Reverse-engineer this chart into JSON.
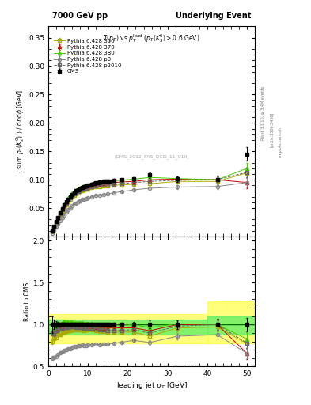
{
  "title_left": "7000 GeV pp",
  "title_right": "Underlying Event",
  "annotation": "(CMS_2012_PAS_QCD_11_010)",
  "rivet_label": "Rivet 3.1.10, ≥ 3.4M events",
  "arxiv_label": "[arXiv:1306.3436]",
  "mcplots_label": "mcplots.cern.ch",
  "plot_title": "$\\Sigma(p_T)$ vs $p_T^{\\rm lead}$ $(p_T(K_S^0) > 0.6$ GeV$)$",
  "ylabel_main": "$\\langle$ sum $p_T(K_s^0)$ $\\rangle$ / d$\\eta$d$\\phi$ [GeV]",
  "ylabel_ratio": "Ratio to CMS",
  "xlabel": "leading jet $p_T$ [GeV]",
  "ylim_main": [
    0.0,
    0.37
  ],
  "ylim_ratio": [
    0.5,
    2.05
  ],
  "xlim": [
    0,
    52
  ],
  "yticks_main": [
    0.05,
    0.1,
    0.15,
    0.2,
    0.25,
    0.3,
    0.35
  ],
  "yticks_ratio": [
    0.5,
    1.0,
    1.5,
    2.0
  ],
  "xticks": [
    0,
    10,
    20,
    30,
    40,
    50
  ],
  "cms_x": [
    1.0,
    1.5,
    2.0,
    2.5,
    3.0,
    3.5,
    4.0,
    4.5,
    5.0,
    5.5,
    6.0,
    6.5,
    7.0,
    7.5,
    8.0,
    8.5,
    9.0,
    9.5,
    10.0,
    10.5,
    11.0,
    11.5,
    12.0,
    12.5,
    13.0,
    13.5,
    14.0,
    14.5,
    15.0,
    15.5,
    16.5,
    18.5,
    21.5,
    25.5,
    32.5,
    42.5,
    50.0
  ],
  "cms_y": [
    0.01,
    0.018,
    0.026,
    0.034,
    0.042,
    0.049,
    0.055,
    0.061,
    0.066,
    0.07,
    0.074,
    0.077,
    0.08,
    0.082,
    0.084,
    0.086,
    0.088,
    0.089,
    0.09,
    0.091,
    0.092,
    0.093,
    0.094,
    0.095,
    0.096,
    0.096,
    0.097,
    0.097,
    0.098,
    0.098,
    0.099,
    0.1,
    0.101,
    0.108,
    0.101,
    0.1,
    0.145
  ],
  "cms_yerr": [
    0.001,
    0.001,
    0.001,
    0.001,
    0.001,
    0.001,
    0.001,
    0.001,
    0.001,
    0.001,
    0.001,
    0.001,
    0.001,
    0.001,
    0.001,
    0.001,
    0.001,
    0.001,
    0.001,
    0.001,
    0.001,
    0.001,
    0.001,
    0.001,
    0.001,
    0.001,
    0.001,
    0.001,
    0.001,
    0.001,
    0.002,
    0.002,
    0.003,
    0.005,
    0.005,
    0.007,
    0.012
  ],
  "p350_x": [
    1.0,
    1.5,
    2.0,
    2.5,
    3.0,
    3.5,
    4.0,
    4.5,
    5.0,
    5.5,
    6.0,
    6.5,
    7.0,
    7.5,
    8.0,
    8.5,
    9.0,
    9.5,
    10.0,
    11.0,
    12.0,
    13.0,
    14.0,
    15.0,
    16.5,
    18.5,
    21.5,
    25.5,
    32.5,
    42.5,
    50.0
  ],
  "p350_y": [
    0.008,
    0.015,
    0.022,
    0.03,
    0.037,
    0.044,
    0.05,
    0.056,
    0.061,
    0.065,
    0.069,
    0.072,
    0.075,
    0.077,
    0.079,
    0.081,
    0.082,
    0.083,
    0.084,
    0.086,
    0.087,
    0.088,
    0.089,
    0.089,
    0.09,
    0.091,
    0.092,
    0.093,
    0.097,
    0.097,
    0.112
  ],
  "p350_yerr": [
    0.0003,
    0.0003,
    0.0003,
    0.0003,
    0.0003,
    0.0003,
    0.0003,
    0.0003,
    0.0003,
    0.0003,
    0.0003,
    0.0003,
    0.0003,
    0.0003,
    0.0003,
    0.0003,
    0.0003,
    0.0003,
    0.0003,
    0.0003,
    0.0003,
    0.0003,
    0.0003,
    0.0003,
    0.001,
    0.001,
    0.002,
    0.003,
    0.004,
    0.005,
    0.008
  ],
  "p350_color": "#aaaa00",
  "p350_label": "Pythia 6.428 350",
  "p370_x": [
    1.0,
    1.5,
    2.0,
    2.5,
    3.0,
    3.5,
    4.0,
    4.5,
    5.0,
    5.5,
    6.0,
    6.5,
    7.0,
    7.5,
    8.0,
    8.5,
    9.0,
    9.5,
    10.0,
    11.0,
    12.0,
    13.0,
    14.0,
    15.0,
    16.5,
    18.5,
    21.5,
    25.5,
    32.5,
    42.5,
    50.0
  ],
  "p370_y": [
    0.009,
    0.016,
    0.024,
    0.032,
    0.04,
    0.047,
    0.054,
    0.06,
    0.065,
    0.069,
    0.073,
    0.076,
    0.079,
    0.081,
    0.083,
    0.085,
    0.086,
    0.087,
    0.088,
    0.09,
    0.091,
    0.092,
    0.093,
    0.094,
    0.095,
    0.096,
    0.097,
    0.1,
    0.101,
    0.1,
    0.095
  ],
  "p370_yerr": [
    0.0003,
    0.0003,
    0.0003,
    0.0003,
    0.0003,
    0.0003,
    0.0003,
    0.0003,
    0.0003,
    0.0003,
    0.0003,
    0.0003,
    0.0003,
    0.0003,
    0.0003,
    0.0003,
    0.0003,
    0.0003,
    0.0003,
    0.0003,
    0.0003,
    0.0003,
    0.0003,
    0.0003,
    0.001,
    0.001,
    0.002,
    0.004,
    0.005,
    0.006,
    0.01
  ],
  "p370_color": "#cc0000",
  "p370_label": "Pythia 6.428 370",
  "p380_x": [
    1.0,
    1.5,
    2.0,
    2.5,
    3.0,
    3.5,
    4.0,
    4.5,
    5.0,
    5.5,
    6.0,
    6.5,
    7.0,
    7.5,
    8.0,
    8.5,
    9.0,
    9.5,
    10.0,
    11.0,
    12.0,
    13.0,
    14.0,
    15.0,
    16.5,
    18.5,
    21.5,
    25.5,
    32.5,
    42.5,
    50.0
  ],
  "p380_y": [
    0.009,
    0.017,
    0.025,
    0.034,
    0.042,
    0.05,
    0.057,
    0.063,
    0.068,
    0.072,
    0.076,
    0.079,
    0.082,
    0.084,
    0.086,
    0.088,
    0.089,
    0.09,
    0.091,
    0.093,
    0.094,
    0.095,
    0.096,
    0.097,
    0.098,
    0.099,
    0.101,
    0.104,
    0.102,
    0.1,
    0.12
  ],
  "p380_yerr": [
    0.0003,
    0.0003,
    0.0003,
    0.0003,
    0.0003,
    0.0003,
    0.0003,
    0.0003,
    0.0003,
    0.0003,
    0.0003,
    0.0003,
    0.0003,
    0.0003,
    0.0003,
    0.0003,
    0.0003,
    0.0003,
    0.0003,
    0.0003,
    0.0003,
    0.0003,
    0.0003,
    0.0003,
    0.001,
    0.001,
    0.002,
    0.004,
    0.004,
    0.006,
    0.01
  ],
  "p380_color": "#44cc00",
  "p380_label": "Pythia 6.428 380",
  "pp0_x": [
    1.0,
    1.5,
    2.0,
    2.5,
    3.0,
    3.5,
    4.0,
    4.5,
    5.0,
    5.5,
    6.0,
    6.5,
    7.0,
    7.5,
    8.0,
    8.5,
    9.0,
    9.5,
    10.0,
    11.0,
    12.0,
    13.0,
    14.0,
    15.0,
    16.5,
    18.5,
    21.5,
    25.5,
    32.5,
    42.5,
    50.0
  ],
  "pp0_y": [
    0.006,
    0.011,
    0.016,
    0.022,
    0.028,
    0.033,
    0.038,
    0.043,
    0.047,
    0.05,
    0.054,
    0.057,
    0.059,
    0.061,
    0.063,
    0.065,
    0.066,
    0.067,
    0.068,
    0.07,
    0.072,
    0.073,
    0.074,
    0.075,
    0.077,
    0.079,
    0.082,
    0.085,
    0.087,
    0.088,
    0.095
  ],
  "pp0_yerr": [
    0.0003,
    0.0003,
    0.0003,
    0.0003,
    0.0003,
    0.0003,
    0.0003,
    0.0003,
    0.0003,
    0.0003,
    0.0003,
    0.0003,
    0.0003,
    0.0003,
    0.0003,
    0.0003,
    0.0003,
    0.0003,
    0.0003,
    0.0003,
    0.0003,
    0.0003,
    0.0003,
    0.0003,
    0.001,
    0.001,
    0.002,
    0.003,
    0.004,
    0.005,
    0.008
  ],
  "pp0_color": "#888888",
  "pp0_label": "Pythia 6.428 p0",
  "pp2010_x": [
    1.0,
    1.5,
    2.0,
    2.5,
    3.0,
    3.5,
    4.0,
    4.5,
    5.0,
    5.5,
    6.0,
    6.5,
    7.0,
    7.5,
    8.0,
    8.5,
    9.0,
    9.5,
    10.0,
    11.0,
    12.0,
    13.0,
    14.0,
    15.0,
    16.5,
    18.5,
    21.5,
    25.5,
    32.5,
    42.5,
    50.0
  ],
  "pp2010_y": [
    0.009,
    0.016,
    0.024,
    0.032,
    0.04,
    0.047,
    0.053,
    0.059,
    0.064,
    0.068,
    0.072,
    0.075,
    0.077,
    0.079,
    0.081,
    0.083,
    0.084,
    0.085,
    0.086,
    0.088,
    0.089,
    0.09,
    0.091,
    0.091,
    0.092,
    0.093,
    0.095,
    0.097,
    0.099,
    0.1,
    0.113
  ],
  "pp2010_yerr": [
    0.0003,
    0.0003,
    0.0003,
    0.0003,
    0.0003,
    0.0003,
    0.0003,
    0.0003,
    0.0003,
    0.0003,
    0.0003,
    0.0003,
    0.0003,
    0.0003,
    0.0003,
    0.0003,
    0.0003,
    0.0003,
    0.0003,
    0.0003,
    0.0003,
    0.0003,
    0.0003,
    0.0003,
    0.001,
    0.001,
    0.002,
    0.003,
    0.004,
    0.005,
    0.009
  ],
  "pp2010_color": "#666666",
  "pp2010_label": "Pythia 6.428 p2010"
}
